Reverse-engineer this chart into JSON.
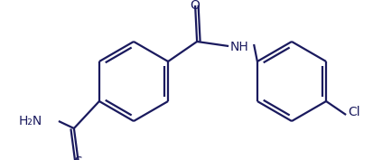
{
  "bg_color": "#ffffff",
  "line_color": "#1a1a5e",
  "text_color": "#1a1a5e",
  "line_width": 1.6,
  "figsize": [
    4.13,
    1.77
  ],
  "dpi": 100,
  "xlim": [
    0,
    413
  ],
  "ylim": [
    0,
    177
  ]
}
